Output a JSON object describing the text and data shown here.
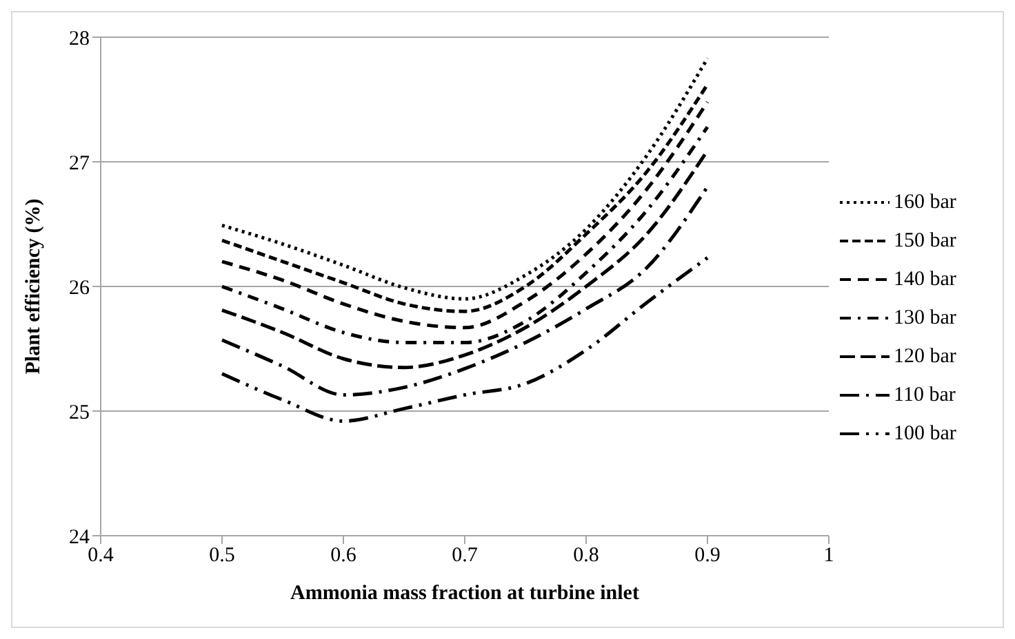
{
  "chart_data": {
    "type": "line",
    "xlabel": "Ammonia mass fraction at turbine inlet",
    "ylabel": "Plant efficiency (%)",
    "x": [
      0.5,
      0.55,
      0.6,
      0.65,
      0.7,
      0.75,
      0.8,
      0.85,
      0.9
    ],
    "xlim": [
      0.4,
      1
    ],
    "xticks": [
      0.4,
      0.5,
      0.6,
      0.7,
      0.8,
      0.9,
      1
    ],
    "ylim": [
      24,
      28
    ],
    "yticks": [
      24,
      25,
      26,
      27,
      28
    ],
    "grid": "y",
    "legend": "right",
    "marker": "none",
    "series": [
      {
        "name": "160 bar",
        "color": "#000000",
        "line_style": "dotted",
        "values": [
          26.49,
          26.34,
          26.17,
          25.99,
          25.9,
          26.09,
          26.46,
          27.05,
          27.83
        ]
      },
      {
        "name": "150 bar",
        "color": "#000000",
        "line_style": "dashed",
        "values": [
          26.37,
          26.2,
          26.03,
          25.86,
          25.8,
          26.0,
          26.42,
          26.92,
          27.62
        ]
      },
      {
        "name": "140 bar",
        "color": "#000000",
        "line_style": "dashed",
        "values": [
          26.2,
          26.05,
          25.86,
          25.72,
          25.67,
          25.88,
          26.26,
          26.78,
          27.48
        ]
      },
      {
        "name": "130 bar",
        "color": "#000000",
        "line_style": "dashed",
        "values": [
          26.0,
          25.82,
          25.63,
          25.55,
          25.55,
          25.72,
          26.11,
          26.61,
          27.28
        ]
      },
      {
        "name": "120 bar",
        "color": "#000000",
        "line_style": "dashed",
        "values": [
          25.81,
          25.63,
          25.42,
          25.35,
          25.45,
          25.67,
          26.0,
          26.42,
          27.09
        ]
      },
      {
        "name": "110 bar",
        "color": "#000000",
        "line_style": "dashed",
        "values": [
          25.57,
          25.36,
          25.13,
          25.19,
          25.34,
          25.55,
          25.82,
          26.15,
          26.8
        ]
      },
      {
        "name": "100 bar",
        "color": "#000000",
        "line_style": "dashed",
        "values": [
          25.3,
          25.09,
          24.92,
          25.02,
          25.13,
          25.22,
          25.49,
          25.87,
          26.23
        ]
      }
    ]
  }
}
